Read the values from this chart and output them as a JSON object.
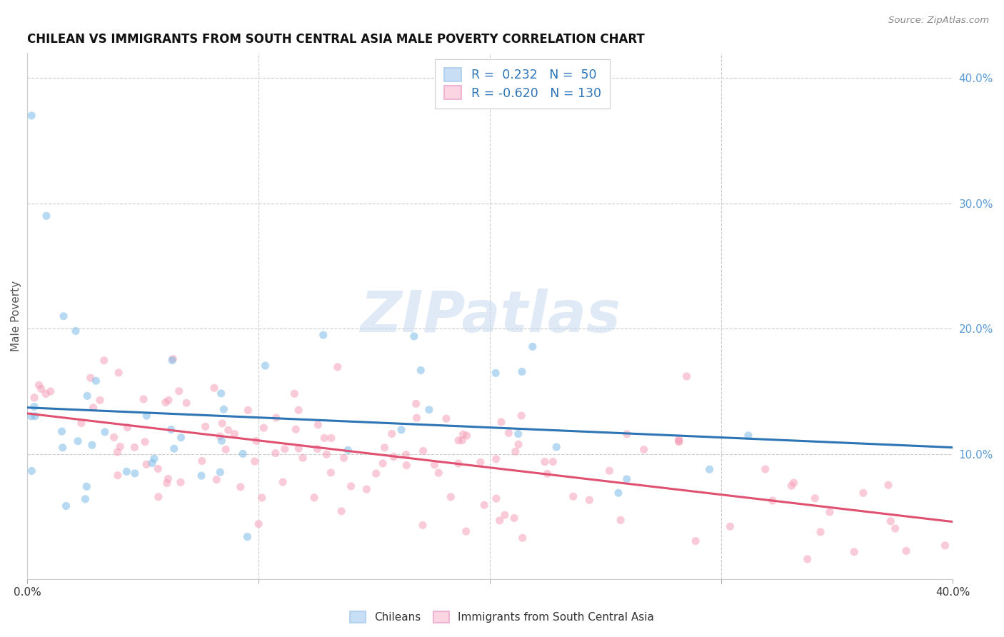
{
  "title": "CHILEAN VS IMMIGRANTS FROM SOUTH CENTRAL ASIA MALE POVERTY CORRELATION CHART",
  "source": "Source: ZipAtlas.com",
  "ylabel": "Male Poverty",
  "xmin": 0.0,
  "xmax": 0.4,
  "ymin": 0.0,
  "ymax": 0.42,
  "yticks": [
    0.1,
    0.2,
    0.3,
    0.4
  ],
  "ytick_labels": [
    "10.0%",
    "20.0%",
    "30.0%",
    "40.0%"
  ],
  "xticks": [
    0.0,
    0.1,
    0.2,
    0.3,
    0.4
  ],
  "xtick_labels": [
    "0.0%",
    "",
    "",
    "",
    "40.0%"
  ],
  "blue_R": 0.232,
  "blue_N": 50,
  "pink_R": -0.62,
  "pink_N": 130,
  "blue_color": "#7dbde8",
  "blue_edge": "#7dbde8",
  "pink_color": "#f5a0b8",
  "pink_edge": "#f5a0b8",
  "blue_fill_legend": "#c8def5",
  "pink_fill_legend": "#fbd5e2",
  "trend_blue_color": "#2e75b6",
  "trend_pink_color": "#e05070",
  "trend_dashed_color": "#aaaaaa",
  "watermark": "ZIPatlas",
  "watermark_color": "#c8d8f0",
  "background_color": "#ffffff",
  "legend_label_blue": "Chileans",
  "legend_label_pink": "Immigrants from South Central Asia",
  "legend_text_blue": "R =  0.232   N =  50",
  "legend_text_pink": "R = -0.620   N = 130"
}
